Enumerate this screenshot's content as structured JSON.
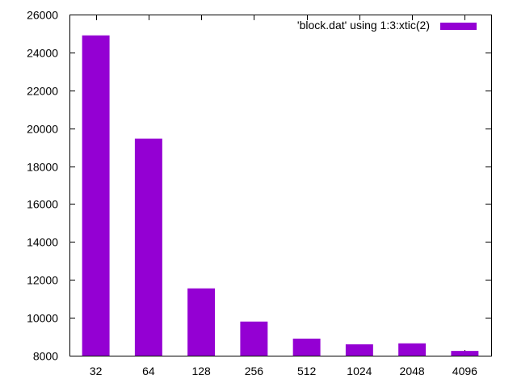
{
  "chart_data": {
    "type": "bar",
    "categories": [
      "32",
      "64",
      "128",
      "256",
      "512",
      "1024",
      "2048",
      "4096"
    ],
    "series": [
      {
        "name": "'block.dat' using 1:3:xtic(2)",
        "values": [
          24900,
          19450,
          11550,
          9800,
          8900,
          8600,
          8650,
          8250
        ]
      }
    ],
    "title": "",
    "xlabel": "",
    "ylabel": "",
    "ylim": [
      8000,
      26000
    ],
    "yticks": [
      8000,
      10000,
      12000,
      14000,
      16000,
      18000,
      20000,
      22000,
      24000,
      26000
    ],
    "grid": false,
    "legend_position": "top-right",
    "bar_color": "#9400D3"
  }
}
